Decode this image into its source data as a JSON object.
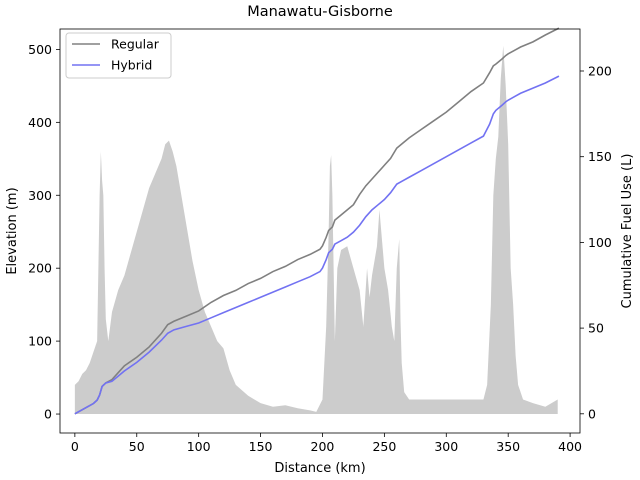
{
  "chart_data": {
    "type": "line",
    "title": "Manawatu-Gisborne",
    "xlabel": "Distance (km)",
    "ylabel": "Elevation (m)",
    "y2label": "Cumulative Fuel Use (L)",
    "xlim": [
      -12,
      408
    ],
    "ylim": [
      -26,
      528
    ],
    "y2lim": [
      -11.2,
      224.5
    ],
    "x_ticks": [
      0,
      50,
      100,
      150,
      200,
      250,
      300,
      350,
      400
    ],
    "y_ticks": [
      0,
      100,
      200,
      300,
      400,
      500
    ],
    "y2_ticks": [
      0,
      50,
      100,
      150,
      200
    ],
    "legend_position": "top-left",
    "elevation_profile": {
      "color": "#cccccc",
      "x": [
        0,
        3,
        6,
        9,
        12,
        15,
        18,
        19,
        20,
        21,
        22,
        23,
        24,
        25,
        27,
        30,
        35,
        40,
        45,
        50,
        55,
        60,
        65,
        70,
        73,
        76,
        79,
        82,
        85,
        90,
        95,
        100,
        105,
        110,
        115,
        120,
        125,
        130,
        140,
        150,
        160,
        170,
        180,
        190,
        195,
        200,
        203,
        205,
        206,
        207,
        208,
        209,
        210,
        212,
        215,
        220,
        225,
        230,
        233,
        236,
        238,
        240,
        242,
        244,
        246,
        248,
        250,
        253,
        256,
        258,
        260,
        262,
        263,
        264,
        266,
        270,
        280,
        290,
        300,
        310,
        320,
        330,
        333,
        336,
        338,
        340,
        342,
        344,
        346,
        348,
        350,
        352,
        354,
        356,
        358,
        360,
        362,
        370,
        380,
        390
      ],
      "values": [
        40,
        45,
        55,
        60,
        70,
        85,
        100,
        200,
        300,
        360,
        320,
        300,
        200,
        130,
        100,
        140,
        170,
        190,
        220,
        250,
        280,
        310,
        330,
        350,
        370,
        375,
        360,
        340,
        310,
        260,
        210,
        170,
        140,
        120,
        100,
        90,
        60,
        40,
        25,
        15,
        10,
        12,
        8,
        5,
        3,
        20,
        120,
        250,
        340,
        355,
        300,
        200,
        100,
        200,
        225,
        230,
        200,
        170,
        120,
        200,
        160,
        190,
        210,
        230,
        280,
        240,
        200,
        170,
        120,
        100,
        200,
        240,
        130,
        70,
        30,
        20,
        20,
        20,
        20,
        20,
        20,
        20,
        40,
        150,
        300,
        350,
        380,
        460,
        505,
        450,
        370,
        200,
        150,
        80,
        40,
        30,
        20,
        15,
        10,
        20
      ]
    },
    "series": [
      {
        "name": "Regular",
        "color": "#808080",
        "x": [
          0,
          10,
          15,
          18,
          20,
          22,
          25,
          30,
          35,
          40,
          50,
          60,
          70,
          75,
          80,
          90,
          100,
          110,
          120,
          130,
          140,
          150,
          160,
          170,
          180,
          190,
          198,
          200,
          203,
          205,
          208,
          210,
          215,
          220,
          225,
          230,
          235,
          240,
          245,
          250,
          255,
          260,
          265,
          270,
          280,
          290,
          300,
          310,
          320,
          330,
          335,
          338,
          340,
          345,
          348,
          350,
          355,
          360,
          370,
          380,
          391
        ],
        "values": [
          0,
          4,
          6,
          8,
          11,
          16,
          18,
          20,
          24,
          28,
          33,
          39,
          47,
          52,
          54,
          57,
          60,
          65,
          69,
          72,
          76,
          79,
          83,
          86,
          90,
          93,
          96,
          98,
          103,
          107,
          109,
          113,
          116,
          119,
          122,
          128,
          133,
          137,
          141,
          145,
          149,
          155,
          158,
          161,
          166,
          171,
          176,
          182,
          188,
          193,
          199,
          203,
          204,
          207,
          209,
          210,
          212,
          214,
          217,
          221,
          225
        ]
      },
      {
        "name": "Hybrid",
        "color": "#7272f2",
        "x": [
          0,
          10,
          15,
          18,
          20,
          22,
          25,
          30,
          35,
          40,
          50,
          60,
          70,
          75,
          80,
          90,
          100,
          110,
          120,
          130,
          140,
          150,
          160,
          170,
          180,
          190,
          198,
          200,
          203,
          205,
          208,
          210,
          215,
          220,
          225,
          230,
          235,
          240,
          245,
          250,
          255,
          260,
          265,
          270,
          280,
          290,
          300,
          310,
          320,
          330,
          335,
          338,
          340,
          345,
          348,
          350,
          355,
          360,
          370,
          380,
          391
        ],
        "values": [
          0,
          4,
          6,
          8,
          11,
          16,
          18,
          19,
          22,
          25,
          30,
          36,
          43,
          47,
          49,
          51,
          53,
          56,
          59,
          62,
          65,
          68,
          71,
          74,
          77,
          80,
          83,
          85,
          90,
          94,
          96,
          99,
          101,
          103,
          106,
          110,
          115,
          119,
          122,
          125,
          129,
          134,
          136,
          138,
          142,
          146,
          150,
          154,
          158,
          162,
          169,
          175,
          177,
          180,
          182,
          183,
          185,
          187,
          190,
          193,
          197
        ]
      }
    ]
  }
}
